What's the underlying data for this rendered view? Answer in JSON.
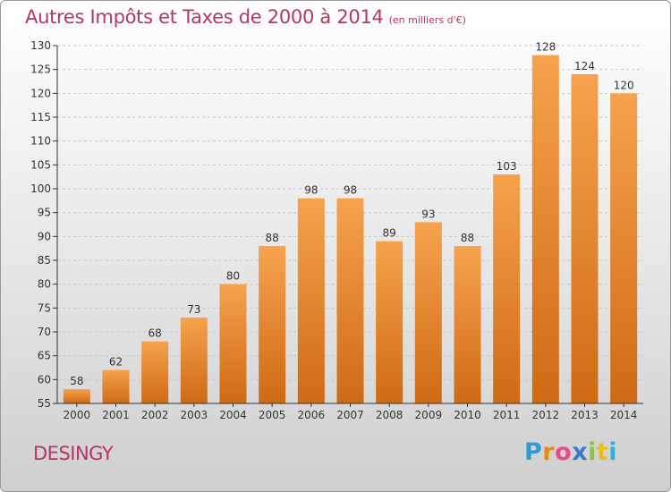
{
  "header": {
    "title": "Autres Impôts et Taxes de 2000 à 2014",
    "subtitle": "(en milliers d'€)"
  },
  "footer": {
    "place": "DESINGY",
    "logo_letters": [
      "P",
      "r",
      "o",
      "x",
      "i",
      "t",
      "i"
    ],
    "logo_colors": [
      "#2f9bd1",
      "#e88a1a",
      "#e84a8a",
      "#3a7ac8",
      "#8ac43a",
      "#e8c01a",
      "#2fb0d8"
    ]
  },
  "colors": {
    "title": "#b8336a",
    "bar_light": "#f6a24e",
    "bar_dark": "#cf6a14",
    "axis": "#333333"
  },
  "chart_data": {
    "type": "bar",
    "title": "Autres Impôts et Taxes de 2000 à 2014",
    "subtitle": "(en milliers d'€)",
    "xlabel": "",
    "ylabel": "",
    "categories": [
      "2000",
      "2001",
      "2002",
      "2003",
      "2004",
      "2005",
      "2006",
      "2007",
      "2008",
      "2009",
      "2010",
      "2011",
      "2012",
      "2013",
      "2014"
    ],
    "values": [
      58,
      62,
      68,
      73,
      80,
      88,
      98,
      98,
      89,
      93,
      88,
      103,
      128,
      124,
      120
    ],
    "ylim": [
      55,
      130
    ],
    "yticks": [
      55,
      60,
      65,
      70,
      75,
      80,
      85,
      90,
      95,
      100,
      105,
      110,
      115,
      120,
      125,
      130
    ],
    "grid": true,
    "legend": "none"
  }
}
